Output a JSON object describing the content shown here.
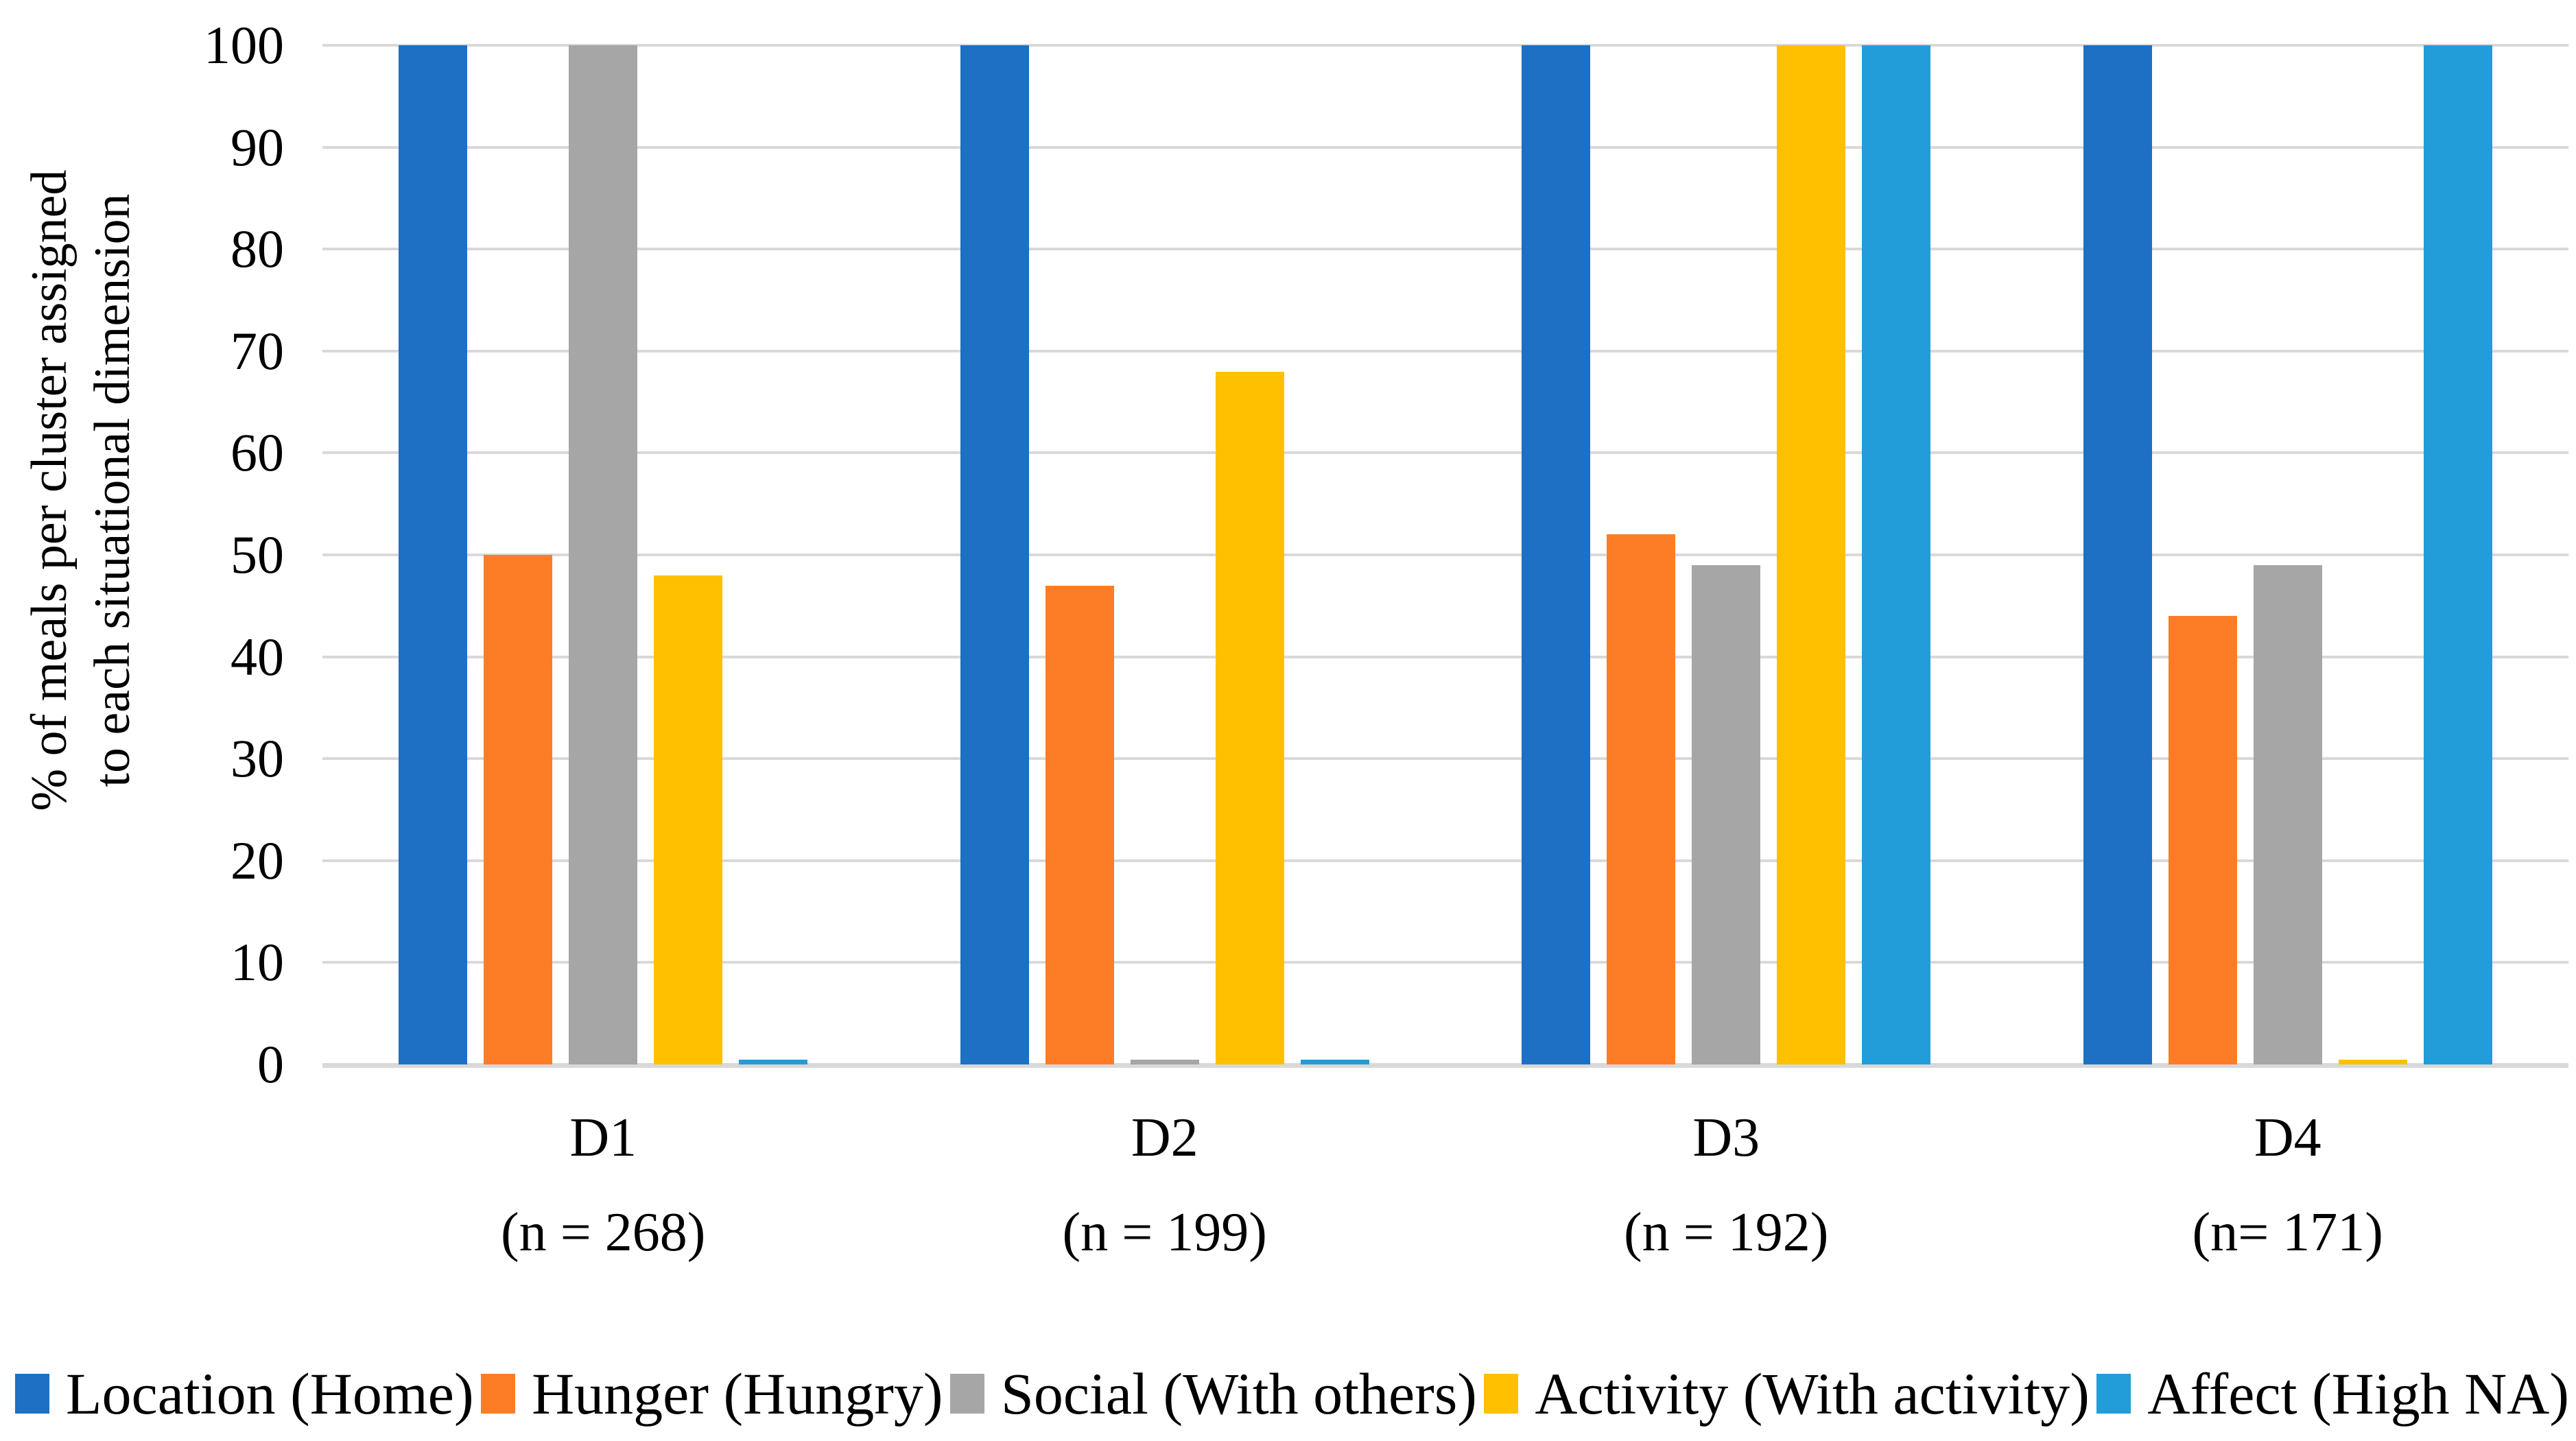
{
  "chart_data": {
    "type": "bar",
    "title": "",
    "y_axis": {
      "label_lines": [
        "% of meals per cluster assigned",
        "to each situational dimension"
      ],
      "min": 0,
      "max": 100,
      "tick_step": 10,
      "ticks": [
        0,
        10,
        20,
        30,
        40,
        50,
        60,
        70,
        80,
        90,
        100
      ]
    },
    "x_axis": {
      "categories": [
        "D1",
        "D2",
        "D3",
        "D4"
      ],
      "sublabels": [
        "(n = 268)",
        "(n = 199)",
        "(n = 192)",
        "(n= 171)"
      ]
    },
    "series": [
      {
        "name": "Location (Home)",
        "color": "#1d70c4",
        "values": [
          100,
          100,
          100,
          100
        ]
      },
      {
        "name": "Hunger (Hungry)",
        "color": "#fd7d26",
        "values": [
          50,
          47,
          52,
          44
        ]
      },
      {
        "name": "Social (With others)",
        "color": "#a6a6a6",
        "values": [
          100,
          0.5,
          49,
          49
        ]
      },
      {
        "name": "Activity (With activity)",
        "color": "#ffc000",
        "values": [
          48,
          68,
          100,
          0.5
        ]
      },
      {
        "name": "Affect (High NA)",
        "color": "#229dd9",
        "values": [
          0.5,
          0.5,
          100,
          100
        ]
      }
    ],
    "legend_position": "bottom",
    "grid": true,
    "gridline_color": "#d9d9d9",
    "axis_line_color": "#d9d9d9",
    "background_color": "#ffffff"
  }
}
